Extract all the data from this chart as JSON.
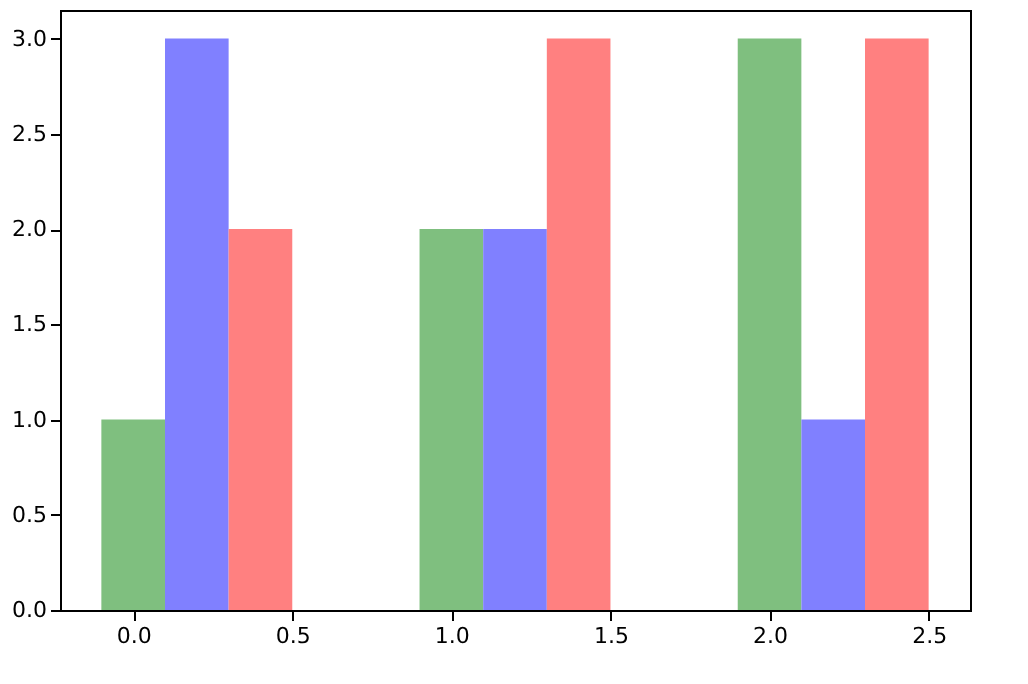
{
  "chart_data": {
    "type": "bar",
    "grid": false,
    "xlim": [
      -0.23,
      2.63
    ],
    "xticks": [
      {
        "value": 0,
        "label": "0.0"
      },
      {
        "value": 0.5,
        "label": "0.5"
      },
      {
        "value": 1,
        "label": "1.0"
      },
      {
        "value": 1.5,
        "label": "1.5"
      },
      {
        "value": 2,
        "label": "2.0"
      },
      {
        "value": 2.5,
        "label": "2.5"
      }
    ],
    "ylim": [
      0,
      3.15
    ],
    "yticks": [
      {
        "value": 0,
        "label": "0.0"
      },
      {
        "value": 0.5,
        "label": "0.5"
      },
      {
        "value": 1,
        "label": "1.0"
      },
      {
        "value": 1.5,
        "label": "1.5"
      },
      {
        "value": 2,
        "label": "2.0"
      },
      {
        "value": 2.5,
        "label": "2.5"
      },
      {
        "value": 3,
        "label": "3.0"
      }
    ],
    "series": [
      {
        "color": "#7fbf7f",
        "x": [
          0,
          1,
          2
        ],
        "values": [
          1,
          2,
          3
        ]
      },
      {
        "color": "#8080ff",
        "x": [
          0.2,
          1.2,
          2.2
        ],
        "values": [
          3,
          2,
          1
        ]
      },
      {
        "color": "#ff8080",
        "x": [
          0.4,
          1.4,
          2.4
        ],
        "values": [
          2,
          3,
          3
        ]
      }
    ]
  }
}
